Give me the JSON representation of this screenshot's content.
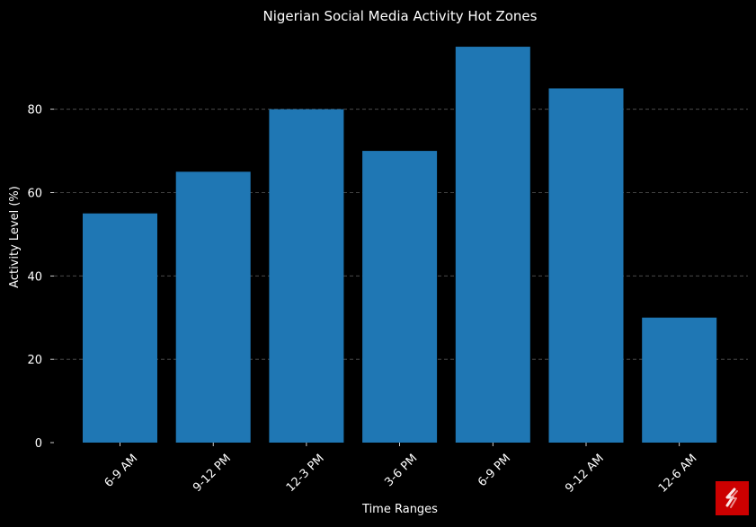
{
  "chart_data": {
    "type": "bar",
    "title": "Nigerian Social Media Activity Hot Zones",
    "xlabel": "Time Ranges",
    "ylabel": "Activity Level (%)",
    "categories": [
      "6-9 AM",
      "9-12 PM",
      "12-3 PM",
      "3-6 PM",
      "6-9 PM",
      "9-12 AM",
      "12-6 AM"
    ],
    "values": [
      55,
      65,
      80,
      70,
      95,
      85,
      30
    ],
    "ylim": [
      0,
      99.75
    ],
    "yticks": [
      0,
      20,
      40,
      60,
      80
    ],
    "grid": true,
    "colors": {
      "background": "#000000",
      "bar": "#1f77b4",
      "text": "#ffffff",
      "grid": "#555555"
    }
  },
  "logo": {
    "icon": "sponsor-logo-icon",
    "color": "#cc0000"
  }
}
